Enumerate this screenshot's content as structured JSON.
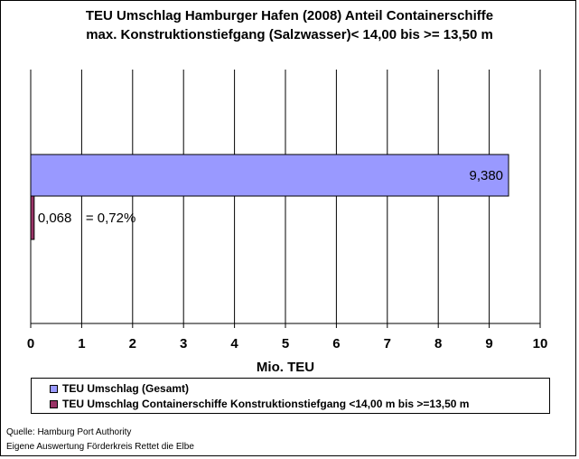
{
  "title_line1": "TEU Umschlag Hamburger Hafen (2008)  Anteil Containerschiffe",
  "title_line2": "max. Konstruktionstiefgang (Salzwasser)< 14,00 bis >= 13,50 m",
  "source_line1": "Quelle: Hamburg Port Authority",
  "source_line2": "Eigene Auswertung Förderkreis Rettet die Elbe",
  "chart_data": {
    "type": "bar",
    "orientation": "horizontal",
    "xlabel": "Mio. TEU",
    "xlim": [
      0,
      10
    ],
    "xticks": [
      0,
      1,
      2,
      3,
      4,
      5,
      6,
      7,
      8,
      9,
      10
    ],
    "grid": "vertical",
    "legend_position": "bottom",
    "series": [
      {
        "name": "TEU Umschlag (Gesamt)",
        "values": [
          9.38
        ],
        "label": "9,380",
        "color": "#9999ff"
      },
      {
        "name": "TEU Umschlag Containerschiffe Konstruktionstiefgang <14,00 m bis >=13,50 m",
        "values": [
          0.068
        ],
        "label": "0,068",
        "color": "#993366"
      }
    ],
    "annotations": [
      {
        "text": "= 0,72%",
        "series": 1
      }
    ]
  }
}
